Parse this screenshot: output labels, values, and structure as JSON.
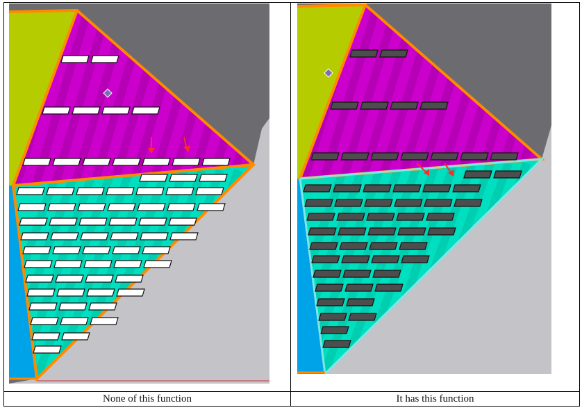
{
  "captions": {
    "left": "None of this function",
    "right": "It has this function"
  },
  "colors": {
    "dark_gray": "#6b6b70",
    "light_gray": "#c3c3c8",
    "yellow_green": "#b5cc00",
    "magenta": "#cc00cc",
    "cyan": "#00e0c0",
    "blue": "#00a2e8",
    "orange": "#ff8a00",
    "light_cyan_edge": "#7fe6e6",
    "white_slot": "#ffffff",
    "dark_slot": "#4d4d4d",
    "arrow_red": "#ff2a2a",
    "marker": "#7a6fb0"
  },
  "icons": [
    "diamond-marker-icon",
    "red-arrow-icon"
  ]
}
